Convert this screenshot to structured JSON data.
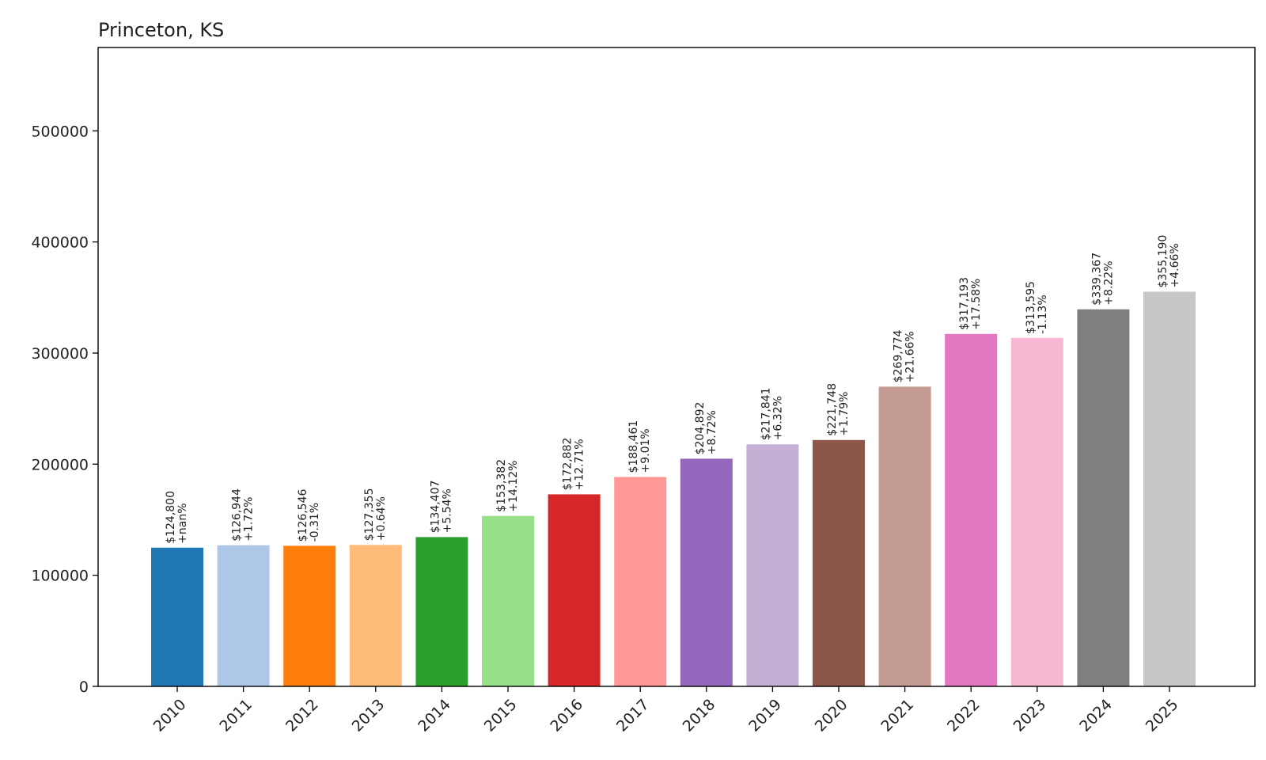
{
  "chart_data": {
    "type": "bar",
    "title": "Princeton, KS",
    "xlabel": "",
    "ylabel": "",
    "ylim": [
      0,
      575000
    ],
    "yticks": [
      0,
      100000,
      200000,
      300000,
      400000,
      500000
    ],
    "ytick_labels": [
      "0",
      "100000",
      "200000",
      "300000",
      "400000",
      "500000"
    ],
    "categories": [
      "2010",
      "2011",
      "2012",
      "2013",
      "2014",
      "2015",
      "2016",
      "2017",
      "2018",
      "2019",
      "2020",
      "2021",
      "2022",
      "2023",
      "2024",
      "2025"
    ],
    "values": [
      124800,
      126944,
      126546,
      127355,
      134407,
      153382,
      172882,
      188461,
      204892,
      217841,
      221748,
      269774,
      317193,
      313595,
      339367,
      355190
    ],
    "value_labels": [
      "$124,800",
      "$126,944",
      "$126,546",
      "$127,355",
      "$134,407",
      "$153,382",
      "$172,882",
      "$188,461",
      "$204,892",
      "$217,841",
      "$221,748",
      "$269,774",
      "$317,193",
      "$313,595",
      "$339,367",
      "$355,190"
    ],
    "change_labels": [
      "+nan%",
      "+1.72%",
      "-0.31%",
      "+0.64%",
      "+5.54%",
      "+14.12%",
      "+12.71%",
      "+9.01%",
      "+8.72%",
      "+6.32%",
      "+1.79%",
      "+21.66%",
      "+17.58%",
      "-1.13%",
      "+8.22%",
      "+4.66%"
    ],
    "colors": [
      "#1f77b4",
      "#aec7e8",
      "#ff7f0e",
      "#ffbb78",
      "#2ca02c",
      "#98df8a",
      "#d62728",
      "#ff9896",
      "#9467bd",
      "#c5b0d5",
      "#8c564b",
      "#c49c94",
      "#e377c2",
      "#f7b6d2",
      "#7f7f7f",
      "#c7c7c7"
    ],
    "grid": false,
    "legend": "none"
  }
}
